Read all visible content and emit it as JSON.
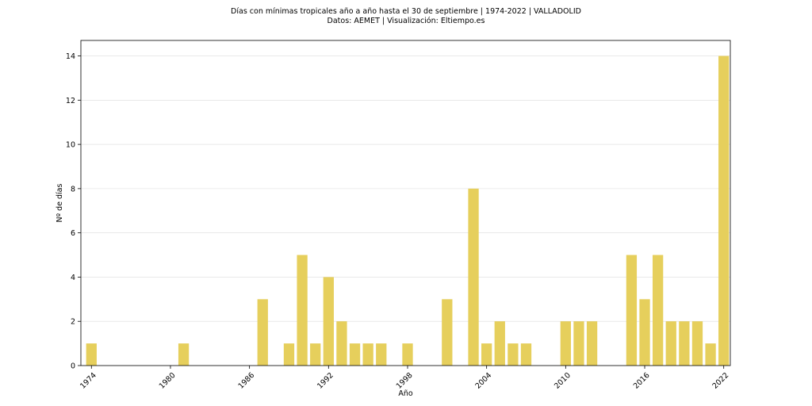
{
  "chart_data": {
    "type": "bar",
    "title": "Días con mínimas tropicales año a año hasta el 30 de septiembre | 1974-2022 | VALLADOLID",
    "subtitle": "Datos: AEMET | Visualización: Eltiempo.es",
    "xlabel": "Año",
    "ylabel": "Nº de días",
    "x": [
      1974,
      1975,
      1976,
      1977,
      1978,
      1979,
      1980,
      1981,
      1982,
      1983,
      1984,
      1985,
      1986,
      1987,
      1988,
      1989,
      1990,
      1991,
      1992,
      1993,
      1994,
      1995,
      1996,
      1997,
      1998,
      1999,
      2000,
      2001,
      2002,
      2003,
      2004,
      2005,
      2006,
      2007,
      2008,
      2009,
      2010,
      2011,
      2012,
      2013,
      2014,
      2015,
      2016,
      2017,
      2018,
      2019,
      2020,
      2021,
      2022
    ],
    "values": [
      1,
      0,
      0,
      0,
      0,
      0,
      0,
      1,
      0,
      0,
      0,
      0,
      0,
      3,
      0,
      1,
      5,
      1,
      4,
      2,
      1,
      1,
      1,
      0,
      1,
      0,
      0,
      3,
      0,
      8,
      1,
      2,
      1,
      1,
      0,
      0,
      2,
      2,
      2,
      0,
      0,
      5,
      3,
      5,
      2,
      2,
      2,
      1,
      14
    ],
    "xticks": [
      1974,
      1980,
      1986,
      1992,
      1998,
      2004,
      2010,
      2016,
      2022
    ],
    "yticks": [
      0,
      2,
      4,
      6,
      8,
      10,
      12,
      14
    ],
    "xlim": [
      1973.2,
      2022.5
    ],
    "ylim": [
      0,
      14.7
    ],
    "bar_color": "#e6cf5c",
    "grid": "horizontal",
    "legend": "none"
  }
}
